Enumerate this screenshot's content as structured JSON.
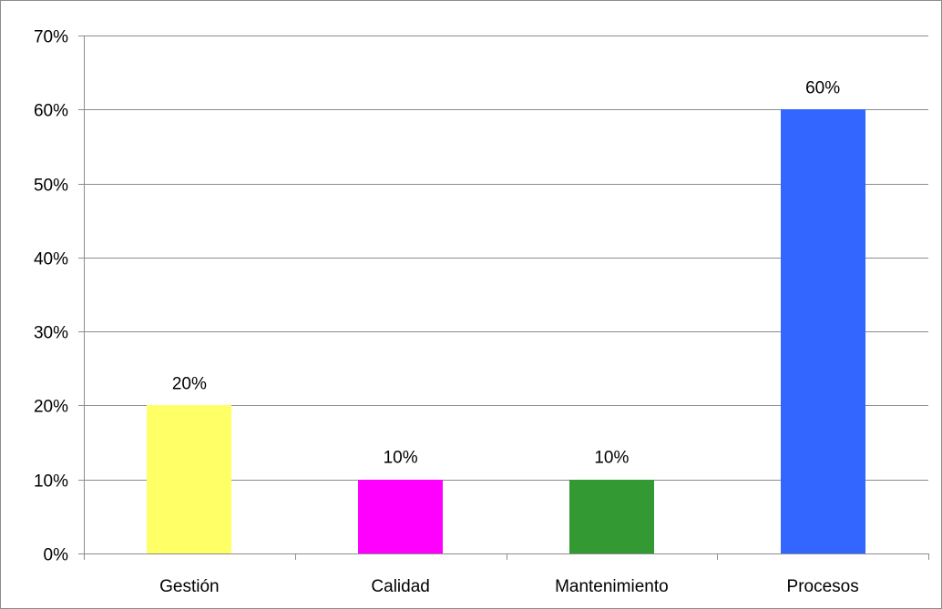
{
  "chart_data": {
    "type": "bar",
    "title": "",
    "xlabel": "",
    "ylabel": "",
    "categories": [
      "Gestión",
      "Calidad",
      "Mantenimiento",
      "Procesos"
    ],
    "values": [
      20,
      10,
      10,
      60
    ],
    "value_unit": "%",
    "colors": [
      "#ffff66",
      "#ff00ff",
      "#339933",
      "#3366ff"
    ],
    "data_labels": [
      "20%",
      "10%",
      "10%",
      "60%"
    ],
    "ylim": [
      0,
      70
    ],
    "yticks": [
      0,
      10,
      20,
      30,
      40,
      50,
      60,
      70
    ],
    "ytick_labels": [
      "0%",
      "10%",
      "20%",
      "30%",
      "40%",
      "50%",
      "60%",
      "70%"
    ],
    "grid": true,
    "gridline_color": "#8c8c8c",
    "legend": "none"
  }
}
